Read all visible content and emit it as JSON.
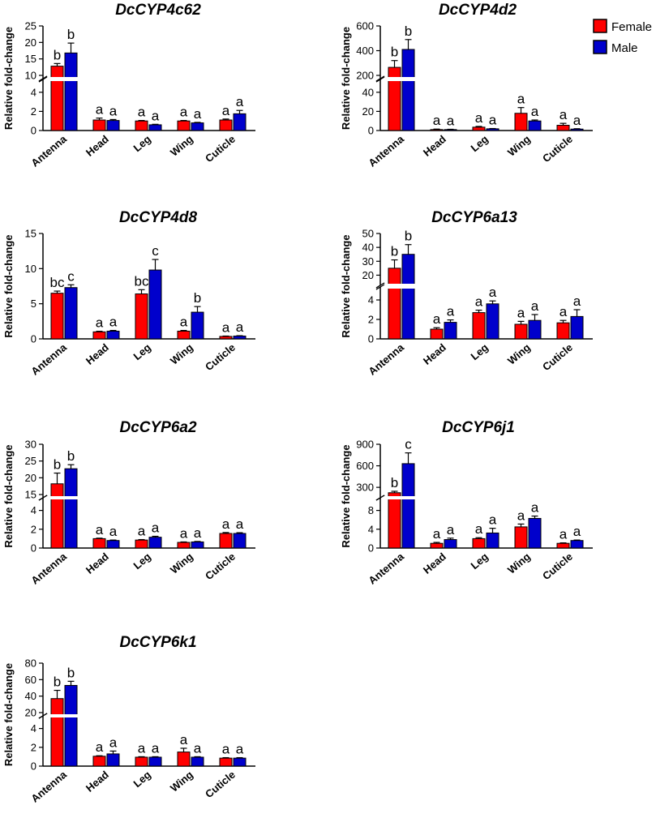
{
  "legend": [
    {
      "name": "Female",
      "color": "#ff0000"
    },
    {
      "name": "Male",
      "color": "#0000cc"
    }
  ],
  "chart_data": [
    {
      "type": "bar",
      "title": "DcCYP4c62",
      "ylabel": "Relative fold-change",
      "categories": [
        "Antenna",
        "Head",
        "Leg",
        "Wing",
        "Cuticle"
      ],
      "axis_break": {
        "lower": [
          0,
          5
        ],
        "upper": [
          10,
          25
        ]
      },
      "yticks_lower": [
        0,
        2,
        4
      ],
      "yticks_upper": [
        10,
        15,
        20,
        25
      ],
      "series": [
        {
          "name": "Female",
          "values": [
            12.8,
            1.1,
            1.0,
            1.0,
            1.1
          ],
          "errors": [
            0.8,
            0.2,
            0.05,
            0.05,
            0.1
          ],
          "letters": [
            "b",
            "a",
            "a",
            "a",
            "a"
          ]
        },
        {
          "name": "Male",
          "values": [
            16.8,
            1.05,
            0.6,
            0.8,
            1.75
          ],
          "errors": [
            3.0,
            0.1,
            0.05,
            0.05,
            0.35
          ],
          "letters": [
            "b",
            "a",
            "a",
            "a",
            "a"
          ]
        }
      ]
    },
    {
      "type": "bar",
      "title": "DcCYP4d2",
      "ylabel": "Relative fold-change",
      "categories": [
        "Antenna",
        "Head",
        "Leg",
        "Wing",
        "Cuticle"
      ],
      "axis_break": {
        "lower": [
          0,
          50
        ],
        "upper": [
          200,
          600
        ]
      },
      "yticks_lower": [
        0,
        20,
        40
      ],
      "yticks_upper": [
        200,
        400,
        600
      ],
      "series": [
        {
          "name": "Female",
          "values": [
            265,
            1,
            3.5,
            18,
            5.5
          ],
          "errors": [
            55,
            0.5,
            0.8,
            6,
            2
          ],
          "letters": [
            "b",
            "a",
            "a",
            "a",
            "a"
          ]
        },
        {
          "name": "Male",
          "values": [
            410,
            1,
            1.8,
            10,
            1.5
          ],
          "errors": [
            80,
            0.3,
            0.3,
            1,
            0.4
          ],
          "letters": [
            "b",
            "a",
            "a",
            "a",
            "a"
          ]
        }
      ]
    },
    {
      "type": "bar",
      "title": "DcCYP4d8",
      "ylabel": "Relative fold-change",
      "categories": [
        "Antenna",
        "Head",
        "Leg",
        "Wing",
        "Cuticle"
      ],
      "ylim": [
        0,
        15
      ],
      "yticks": [
        0,
        5,
        10,
        15
      ],
      "series": [
        {
          "name": "Female",
          "values": [
            6.5,
            1.0,
            6.4,
            1.1,
            0.35
          ],
          "errors": [
            0.3,
            0.08,
            0.6,
            0.1,
            0.05
          ],
          "letters": [
            "bc",
            "a",
            "bc",
            "a",
            "a"
          ]
        },
        {
          "name": "Male",
          "values": [
            7.3,
            1.1,
            9.8,
            3.8,
            0.4
          ],
          "errors": [
            0.4,
            0.1,
            1.5,
            0.8,
            0.05
          ],
          "letters": [
            "c",
            "a",
            "c",
            "b",
            "a"
          ]
        }
      ]
    },
    {
      "type": "bar",
      "title": "DcCYP6a13",
      "ylabel": "Relative fold-change",
      "categories": [
        "Antenna",
        "Head",
        "Leg",
        "Wing",
        "Cuticle"
      ],
      "axis_break": {
        "lower": [
          0,
          5
        ],
        "upper": [
          15,
          50
        ]
      },
      "yticks_lower": [
        0,
        2,
        4
      ],
      "yticks_upper": [
        20,
        30,
        40,
        50
      ],
      "series": [
        {
          "name": "Female",
          "values": [
            25,
            1.0,
            2.7,
            1.5,
            1.65
          ],
          "errors": [
            6,
            0.15,
            0.25,
            0.3,
            0.25
          ],
          "letters": [
            "b",
            "a",
            "a",
            "a",
            "a"
          ]
        },
        {
          "name": "Male",
          "values": [
            35,
            1.7,
            3.6,
            1.9,
            2.3
          ],
          "errors": [
            7,
            0.25,
            0.3,
            0.6,
            0.7
          ],
          "letters": [
            "b",
            "a",
            "a",
            "a",
            "a"
          ]
        }
      ]
    },
    {
      "type": "bar",
      "title": "DcCYP6a2",
      "ylabel": "Relative fold-change",
      "categories": [
        "Antenna",
        "Head",
        "Leg",
        "Wing",
        "Cuticle"
      ],
      "axis_break": {
        "lower": [
          0,
          5
        ],
        "upper": [
          15,
          30
        ]
      },
      "yticks_lower": [
        0,
        2,
        4
      ],
      "yticks_upper": [
        15,
        20,
        25,
        30
      ],
      "series": [
        {
          "name": "Female",
          "values": [
            18.2,
            1.0,
            0.85,
            0.6,
            1.55
          ],
          "errors": [
            3.2,
            0.05,
            0.05,
            0.05,
            0.1
          ],
          "letters": [
            "b",
            "a",
            "a",
            "a",
            "a"
          ]
        },
        {
          "name": "Male",
          "values": [
            22.7,
            0.8,
            1.15,
            0.65,
            1.55
          ],
          "errors": [
            1.2,
            0.05,
            0.1,
            0.05,
            0.08
          ],
          "letters": [
            "b",
            "a",
            "a",
            "a",
            "a"
          ]
        }
      ]
    },
    {
      "type": "bar",
      "title": "DcCYP6j1",
      "ylabel": "Relative fold-change",
      "categories": [
        "Antenna",
        "Head",
        "Leg",
        "Wing",
        "Cuticle"
      ],
      "axis_break": {
        "lower": [
          0,
          10
        ],
        "upper": [
          200,
          900
        ]
      },
      "yticks_lower": [
        0,
        4,
        8
      ],
      "yticks_upper": [
        300,
        600,
        900
      ],
      "series": [
        {
          "name": "Female",
          "values": [
            225,
            1.0,
            2.0,
            4.5,
            1.0
          ],
          "errors": [
            20,
            0.2,
            0.2,
            0.6,
            0.1
          ],
          "letters": [
            "b",
            "a",
            "a",
            "a",
            "a"
          ]
        },
        {
          "name": "Male",
          "values": [
            630,
            1.8,
            3.2,
            6.3,
            1.6
          ],
          "errors": [
            150,
            0.3,
            1.0,
            0.5,
            0.1
          ],
          "letters": [
            "c",
            "a",
            "a",
            "a",
            "a"
          ]
        }
      ]
    },
    {
      "type": "bar",
      "title": "DcCYP6k1",
      "ylabel": "Relative fold-change",
      "categories": [
        "Antenna",
        "Head",
        "Leg",
        "Wing",
        "Cuticle"
      ],
      "axis_break": {
        "lower": [
          0,
          5
        ],
        "upper": [
          20,
          80
        ]
      },
      "yticks_lower": [
        0,
        2,
        4
      ],
      "yticks_upper": [
        20,
        40,
        60,
        80
      ],
      "series": [
        {
          "name": "Female",
          "values": [
            37,
            1.05,
            0.95,
            1.5,
            0.85
          ],
          "errors": [
            10,
            0.05,
            0.05,
            0.4,
            0.05
          ],
          "letters": [
            "b",
            "a",
            "a",
            "a",
            "a"
          ]
        },
        {
          "name": "Male",
          "values": [
            53,
            1.3,
            0.95,
            0.95,
            0.85
          ],
          "errors": [
            5,
            0.3,
            0.05,
            0.05,
            0.05
          ],
          "letters": [
            "b",
            "a",
            "a",
            "a",
            "a"
          ]
        }
      ]
    }
  ]
}
